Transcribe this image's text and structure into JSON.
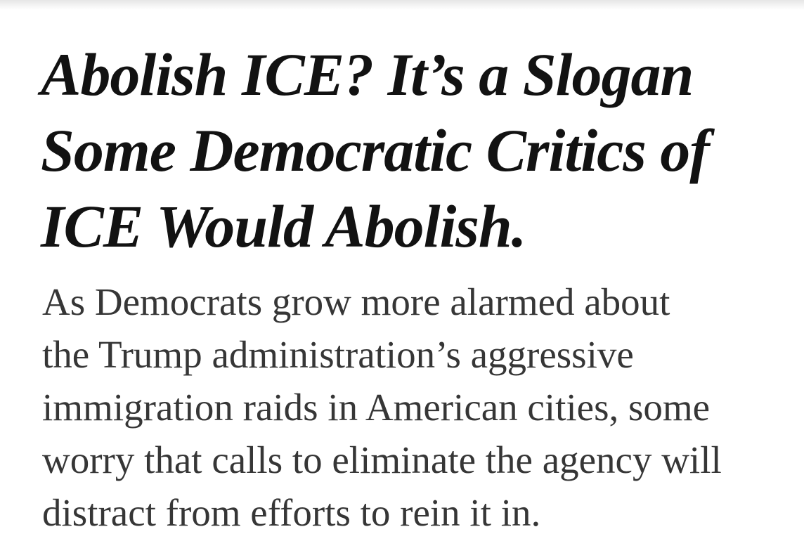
{
  "headline": {
    "lines": [
      "Abolish ICE? It’s a Slogan",
      "Some Democratic Critics of",
      "ICE Would Abolish."
    ]
  },
  "summary": {
    "lines": [
      "As Democrats grow more alarmed about",
      "the Trump administration’s aggressive",
      "immigration raids in American cities, some",
      "worry that calls to eliminate the agency will",
      "distract from efforts to rein it in."
    ]
  }
}
